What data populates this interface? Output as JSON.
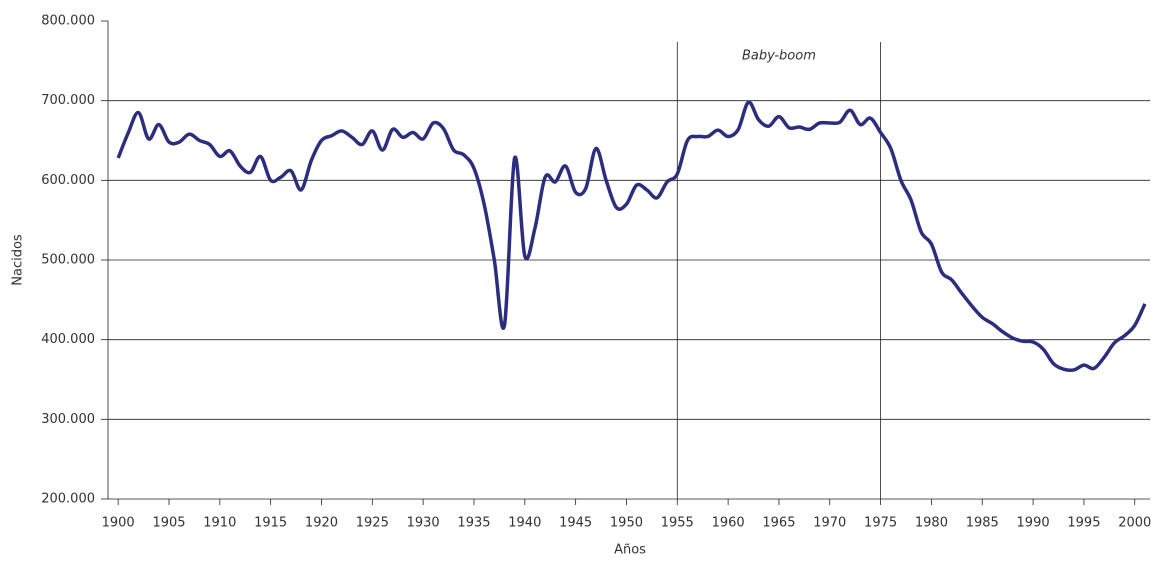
{
  "chart_data": {
    "type": "line",
    "xlabel": "Años",
    "ylabel": "Nacidos",
    "annotation": "Baby-boom",
    "markers": [
      1955,
      1975
    ],
    "x": [
      1900,
      1901,
      1902,
      1903,
      1904,
      1905,
      1906,
      1907,
      1908,
      1909,
      1910,
      1911,
      1912,
      1913,
      1914,
      1915,
      1916,
      1917,
      1918,
      1919,
      1920,
      1921,
      1922,
      1923,
      1924,
      1925,
      1926,
      1927,
      1928,
      1929,
      1930,
      1931,
      1932,
      1933,
      1934,
      1935,
      1936,
      1937,
      1938,
      1939,
      1940,
      1941,
      1942,
      1943,
      1944,
      1945,
      1946,
      1947,
      1948,
      1949,
      1950,
      1951,
      1952,
      1953,
      1954,
      1955,
      1956,
      1957,
      1958,
      1959,
      1960,
      1961,
      1962,
      1963,
      1964,
      1965,
      1966,
      1967,
      1968,
      1969,
      1970,
      1971,
      1972,
      1973,
      1974,
      1975,
      1976,
      1977,
      1978,
      1979,
      1980,
      1981,
      1982,
      1983,
      1984,
      1985,
      1986,
      1987,
      1988,
      1989,
      1990,
      1991,
      1992,
      1993,
      1994,
      1995,
      1996,
      1997,
      1998,
      1999,
      2000,
      2001
    ],
    "series": [
      {
        "name": "Nacidos",
        "color": "#2b2e7e",
        "values": [
          628000,
          660000,
          685000,
          652000,
          670000,
          648000,
          648000,
          658000,
          650000,
          645000,
          630000,
          637000,
          618000,
          610000,
          630000,
          600000,
          604000,
          612000,
          588000,
          625000,
          650000,
          656000,
          662000,
          654000,
          645000,
          662000,
          638000,
          664000,
          654000,
          660000,
          652000,
          672000,
          665000,
          638000,
          632000,
          615000,
          570000,
          500000,
          418000,
          628000,
          505000,
          540000,
          604000,
          598000,
          618000,
          585000,
          590000,
          640000,
          600000,
          566000,
          570000,
          594000,
          588000,
          578000,
          598000,
          608000,
          650000,
          655000,
          655000,
          663000,
          655000,
          664000,
          698000,
          676000,
          668000,
          680000,
          666000,
          667000,
          664000,
          672000,
          672000,
          673000,
          688000,
          670000,
          678000,
          660000,
          640000,
          600000,
          575000,
          535000,
          520000,
          485000,
          475000,
          458000,
          442000,
          428000,
          420000,
          410000,
          402000,
          398000,
          397000,
          388000,
          370000,
          363000,
          362000,
          368000,
          364000,
          378000,
          396000,
          405000,
          418000,
          445000
        ]
      }
    ],
    "xlim": [
      1899,
      2001.5
    ],
    "xticks": [
      1900,
      1905,
      1910,
      1915,
      1920,
      1925,
      1930,
      1935,
      1940,
      1945,
      1950,
      1955,
      1960,
      1965,
      1970,
      1975,
      1980,
      1985,
      1990,
      1995,
      2000
    ],
    "ylim": [
      200000,
      800000
    ],
    "yticks": [
      {
        "value": 200000,
        "label": "200.000"
      },
      {
        "value": 300000,
        "label": "300.000"
      },
      {
        "value": 400000,
        "label": "400.000"
      },
      {
        "value": 500000,
        "label": "500.000"
      },
      {
        "value": 600000,
        "label": "600.000"
      },
      {
        "value": 700000,
        "label": "700.000"
      },
      {
        "value": 800000,
        "label": "800.000"
      }
    ],
    "grid": true
  }
}
